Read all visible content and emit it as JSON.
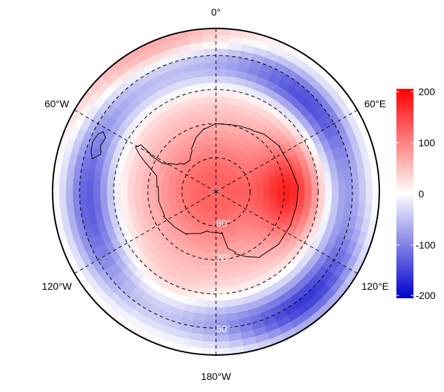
{
  "map": {
    "projection": "south-polar stereographic",
    "longitude_labels": {
      "top": "0°",
      "upper_right": "60°E",
      "lower_right": "120°E",
      "bottom": "180°W",
      "lower_left": "120°W",
      "upper_left": "60°W"
    },
    "latitude_labels": [
      "80°",
      "70°",
      "60°",
      "50°"
    ],
    "colormap": {
      "low": "#0000cc",
      "mid": "#ffffff",
      "high": "#ff0000"
    }
  },
  "colorbar": {
    "ticks": [
      "200",
      "100",
      "0",
      "-100",
      "-200"
    ],
    "range": [
      -210,
      210
    ]
  }
}
